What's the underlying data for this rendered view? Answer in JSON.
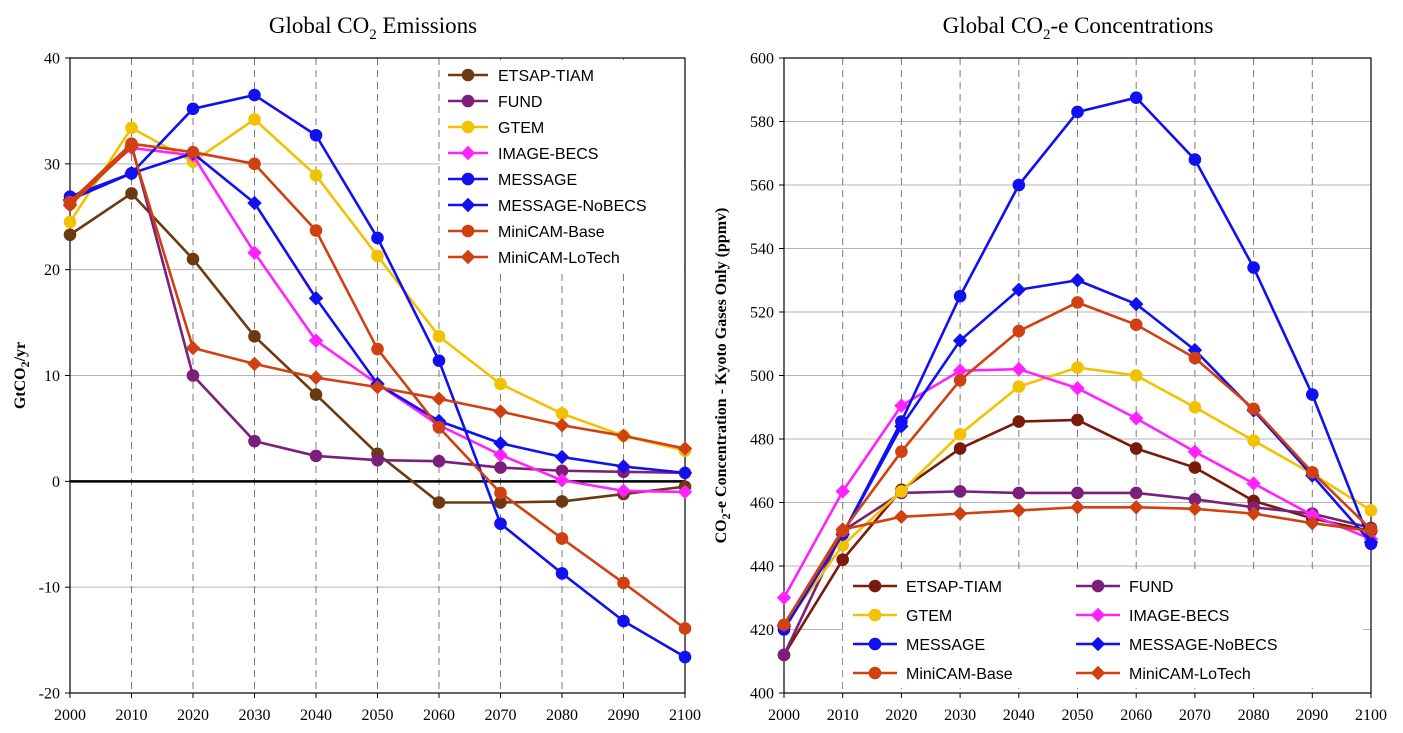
{
  "chart_data": [
    {
      "type": "line",
      "title": "Global CO",
      "title_sub": "2",
      "title_tail": " Emissions",
      "ylabel": "GtCO",
      "ylabel_sub": "2",
      "ylabel_tail": "/yr",
      "xlabel": "",
      "x": [
        2000,
        2010,
        2020,
        2030,
        2040,
        2050,
        2060,
        2070,
        2080,
        2090,
        2100
      ],
      "xlim": [
        2000,
        2100
      ],
      "ylim": [
        -20,
        40
      ],
      "yticks": [
        -20,
        -10,
        0,
        10,
        20,
        30,
        40
      ],
      "ytick_labels": [
        "-20",
        "-10",
        "0",
        "10",
        "20",
        "30",
        "40"
      ],
      "xtick_labels": [
        "2000",
        "2010",
        "2020",
        "2030",
        "2040",
        "2050",
        "2060",
        "2070",
        "2080",
        "2090",
        "2100"
      ],
      "grid": true,
      "zero_line": true,
      "legend_position": "top-right",
      "series": [
        {
          "name": "ETSAP-TIAM",
          "color": "#6b3a10",
          "marker": "circle",
          "values": [
            23.3,
            27.2,
            21.0,
            13.7,
            8.2,
            2.6,
            -2.0,
            -2.0,
            -1.9,
            -1.2,
            -0.5
          ]
        },
        {
          "name": "FUND",
          "color": "#7b1f7b",
          "marker": "circle",
          "values": [
            26.2,
            31.8,
            10.0,
            3.8,
            2.4,
            2.0,
            1.9,
            1.3,
            1.0,
            0.9,
            0.8
          ]
        },
        {
          "name": "GTEM",
          "color": "#f2c200",
          "marker": "circle",
          "values": [
            24.5,
            33.4,
            30.2,
            34.2,
            28.9,
            21.3,
            13.7,
            9.2,
            6.4,
            4.3,
            2.9
          ]
        },
        {
          "name": "IMAGE-BECS",
          "color": "#ff22ff",
          "marker": "diamond",
          "values": [
            26.5,
            31.5,
            30.8,
            21.6,
            13.3,
            9.2,
            5.3,
            2.5,
            0.1,
            -0.9,
            -1.0
          ]
        },
        {
          "name": "MESSAGE",
          "color": "#1010f0",
          "marker": "circle",
          "values": [
            26.9,
            29.1,
            35.2,
            36.5,
            32.7,
            23.0,
            11.4,
            -4.0,
            -8.7,
            -13.2,
            -16.6
          ]
        },
        {
          "name": "MESSAGE-NoBECS",
          "color": "#1010f0",
          "marker": "diamond",
          "values": [
            26.6,
            29.1,
            31.0,
            26.3,
            17.3,
            9.2,
            5.7,
            3.6,
            2.3,
            1.4,
            0.8
          ]
        },
        {
          "name": "MiniCAM-Base",
          "color": "#d04010",
          "marker": "circle",
          "values": [
            26.4,
            31.9,
            31.1,
            30.0,
            23.7,
            12.5,
            5.1,
            -1.1,
            -5.4,
            -9.6,
            -13.9
          ]
        },
        {
          "name": "MiniCAM-LoTech",
          "color": "#d04010",
          "marker": "diamond",
          "values": [
            26.1,
            31.6,
            12.6,
            11.1,
            9.8,
            8.9,
            7.8,
            6.6,
            5.3,
            4.3,
            3.1
          ]
        }
      ]
    },
    {
      "type": "line",
      "title": "Global CO",
      "title_sub": "2",
      "title_tail": "-e Concentrations",
      "ylabel": "CO",
      "ylabel_sub": "2",
      "ylabel_tail": "-e Concentration - Kyoto Gases Only (ppmv)",
      "xlabel": "",
      "x": [
        2000,
        2010,
        2020,
        2030,
        2040,
        2050,
        2060,
        2070,
        2080,
        2090,
        2100
      ],
      "xlim": [
        2000,
        2100
      ],
      "ylim": [
        400,
        600
      ],
      "yticks": [
        400,
        420,
        440,
        460,
        480,
        500,
        520,
        540,
        560,
        580,
        600
      ],
      "ytick_labels": [
        "400",
        "420",
        "440",
        "460",
        "480",
        "500",
        "520",
        "540",
        "560",
        "580",
        "600"
      ],
      "xtick_labels": [
        "2000",
        "2010",
        "2020",
        "2030",
        "2040",
        "2050",
        "2060",
        "2070",
        "2080",
        "2090",
        "2100"
      ],
      "grid": true,
      "zero_line": false,
      "legend_position": "bottom-center",
      "series": [
        {
          "name": "ETSAP-TIAM",
          "color": "#7a1a0a",
          "marker": "circle",
          "values": [
            412.0,
            442.0,
            464.0,
            477.0,
            485.5,
            486.0,
            477.0,
            471.0,
            460.5,
            455.0,
            451.0
          ]
        },
        {
          "name": "FUND",
          "color": "#7b1f7b",
          "marker": "circle",
          "values": [
            412.0,
            451.0,
            463.0,
            463.5,
            463.0,
            463.0,
            463.0,
            461.0,
            458.5,
            456.5,
            452.0
          ]
        },
        {
          "name": "GTEM",
          "color": "#f2c200",
          "marker": "circle",
          "values": [
            421.0,
            446.5,
            463.5,
            481.5,
            496.5,
            502.5,
            500.0,
            490.0,
            479.5,
            469.0,
            457.5
          ]
        },
        {
          "name": "IMAGE-BECS",
          "color": "#ff22ff",
          "marker": "diamond",
          "values": [
            430.0,
            463.5,
            490.5,
            501.5,
            502.0,
            496.0,
            486.5,
            476.0,
            466.0,
            456.0,
            448.5
          ]
        },
        {
          "name": "MESSAGE",
          "color": "#1010f0",
          "marker": "circle",
          "values": [
            420.0,
            450.0,
            485.5,
            525.0,
            560.0,
            583.0,
            587.5,
            568.0,
            534.0,
            494.0,
            447.0
          ]
        },
        {
          "name": "MESSAGE-NoBECS",
          "color": "#1010f0",
          "marker": "diamond",
          "values": [
            421.0,
            450.0,
            484.0,
            511.0,
            527.0,
            530.0,
            522.5,
            508.0,
            489.0,
            468.5,
            447.5
          ]
        },
        {
          "name": "MiniCAM-Base",
          "color": "#d04010",
          "marker": "circle",
          "values": [
            421.5,
            451.0,
            476.0,
            498.5,
            514.0,
            523.0,
            516.0,
            505.5,
            489.5,
            469.5,
            451.5
          ]
        },
        {
          "name": "MiniCAM-LoTech",
          "color": "#d04010",
          "marker": "diamond",
          "values": [
            421.5,
            451.5,
            455.5,
            456.5,
            457.5,
            458.5,
            458.5,
            458.0,
            456.5,
            453.5,
            451.0
          ]
        }
      ]
    }
  ]
}
